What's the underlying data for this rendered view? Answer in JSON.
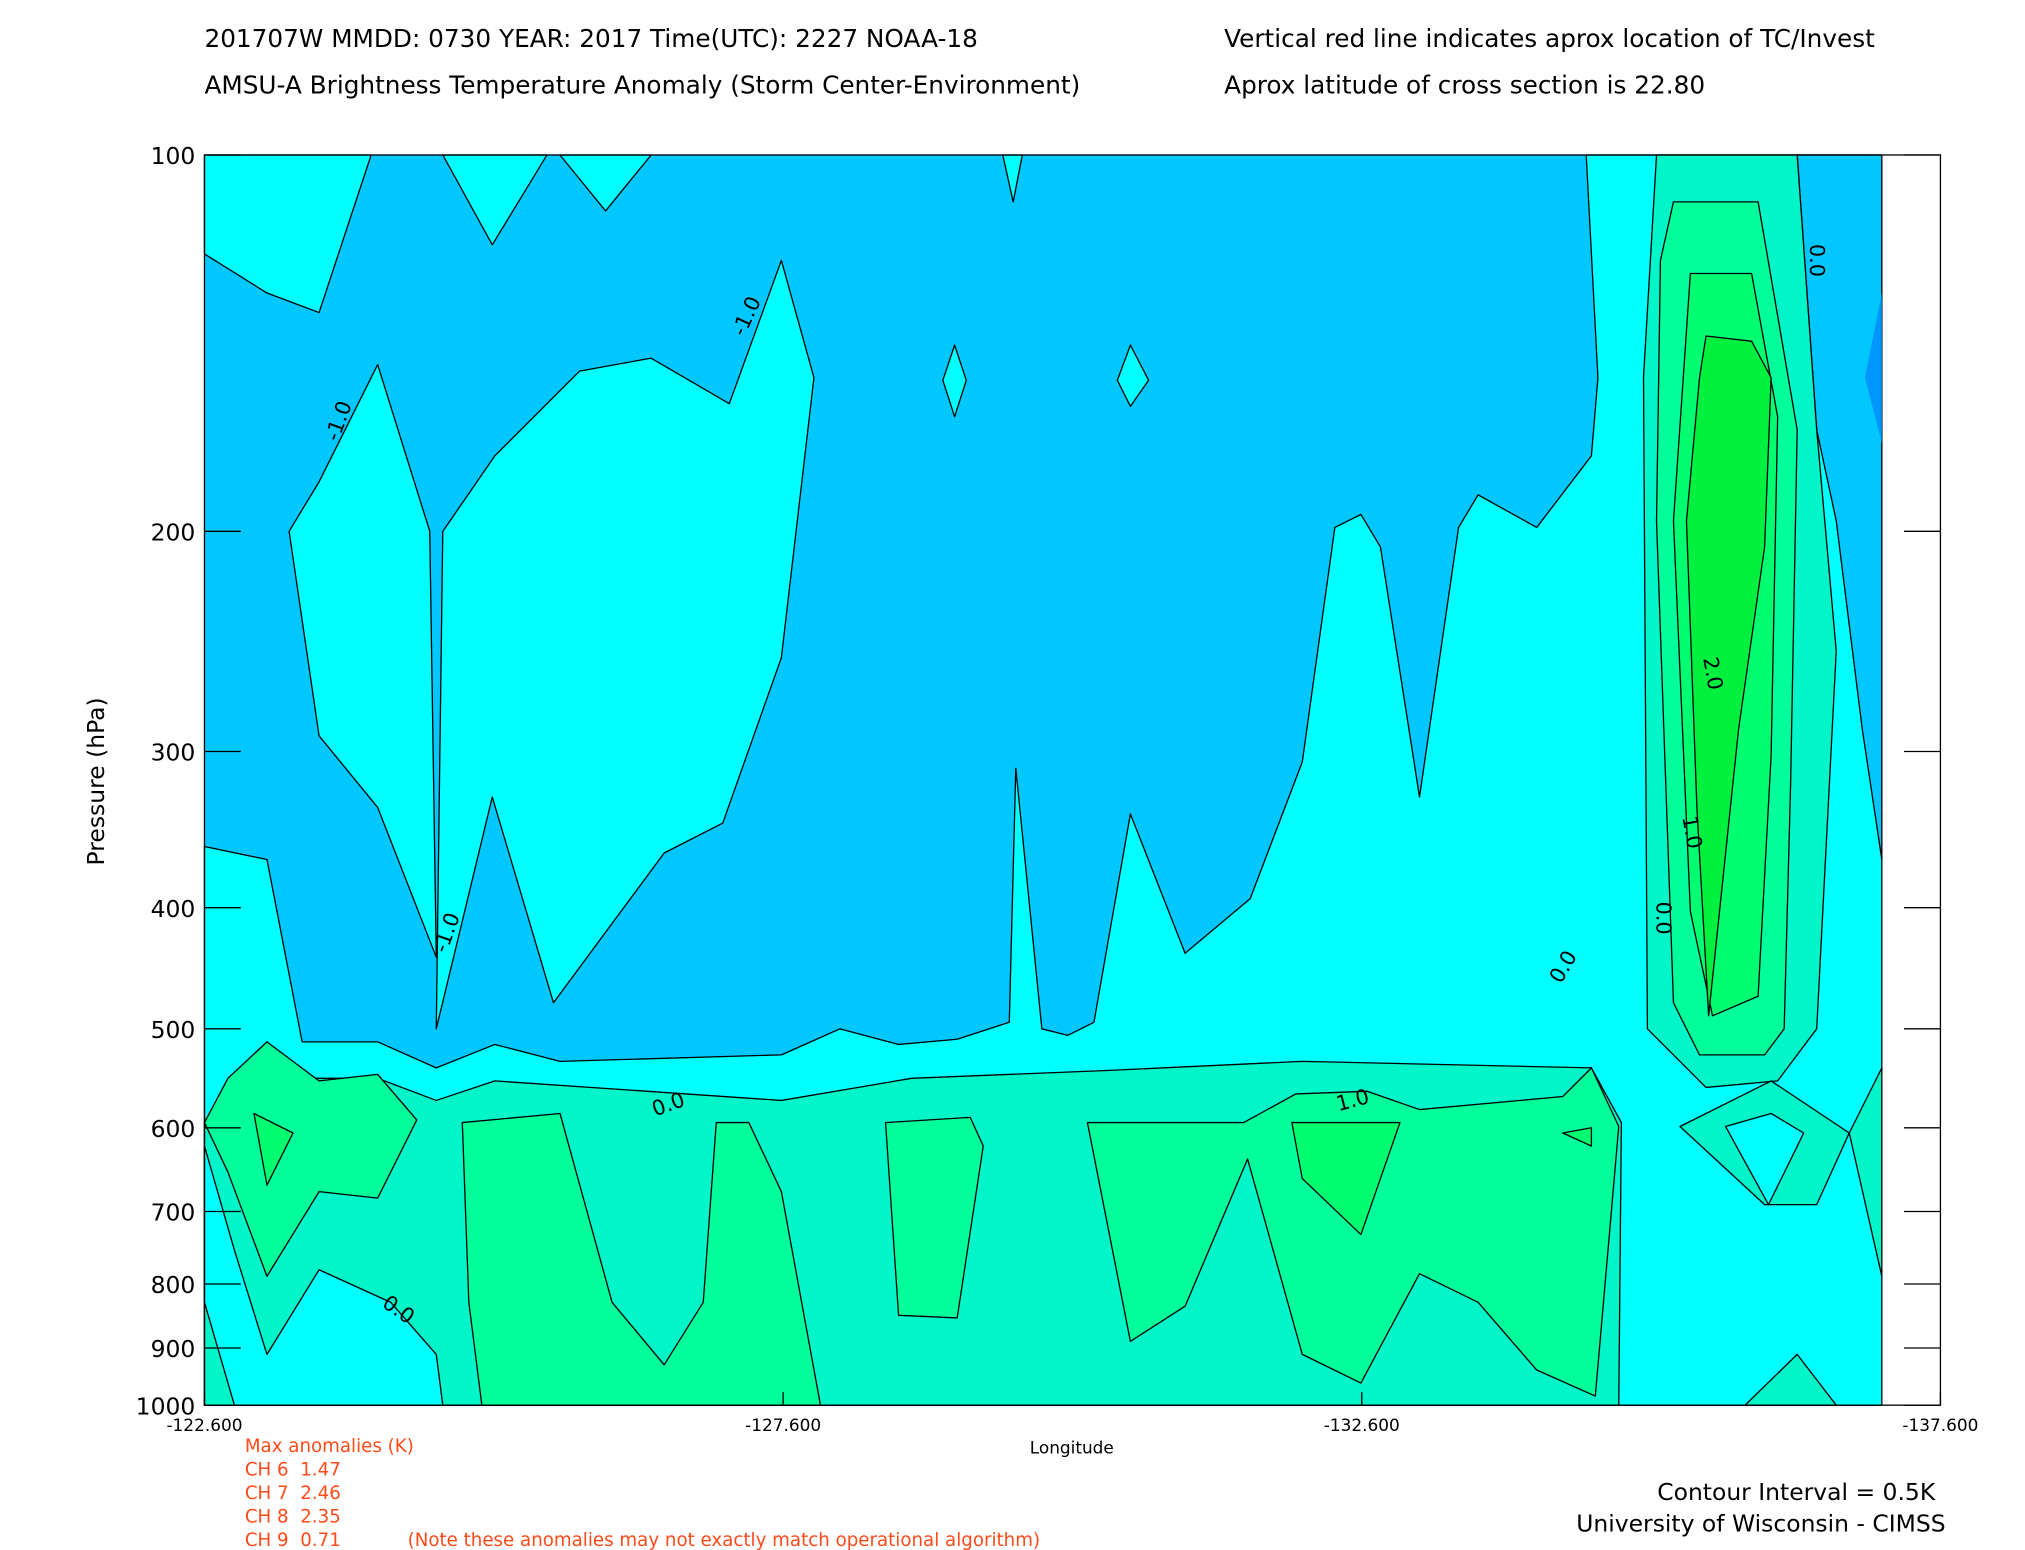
{
  "chart_data": {
    "type": "contour",
    "title": "201707W  MMDD: 0730 YEAR: 2017 Time(UTC): 2227 NOAA-18",
    "subtitle": "AMSU-A Brightness Temperature Anomaly (Storm Center-Environment)",
    "annotations": [
      "Vertical red line indicates aprox location of TC/Invest",
      "Aprox latitude of cross section is 22.80"
    ],
    "xlabel": "Longitude",
    "ylabel": "Pressure (hPa)",
    "xlim": [
      -122.6,
      -137.6
    ],
    "xticks": [
      {
        "value": -122.6,
        "label": "-122.600"
      },
      {
        "value": -127.6,
        "label": "-127.600"
      },
      {
        "value": -132.6,
        "label": "-132.600"
      },
      {
        "value": -137.6,
        "label": "-137.600"
      }
    ],
    "ylim": [
      1000,
      100
    ],
    "yticks": [
      100,
      200,
      300,
      400,
      500,
      600,
      700,
      800,
      900,
      1000
    ],
    "log_y": true,
    "contour_labels": [
      "-1.0",
      "-1.0",
      "-1.0",
      "0.0",
      "0.0",
      "0.0",
      "0.0",
      "1.0",
      "2.0",
      "1.0",
      "0.0"
    ],
    "max_anomalies": {
      "title": "Max anomalies (K)",
      "rows": [
        "CH 6  1.47",
        "CH 7  2.46",
        "CH 8  2.35",
        "CH 9  0.71"
      ],
      "note": "(Note these anomalies may not exactly match operational algorithm)"
    },
    "footer": [
      "Contour Interval = 0.5K",
      "University of Wisconsin - CIMSS"
    ]
  }
}
